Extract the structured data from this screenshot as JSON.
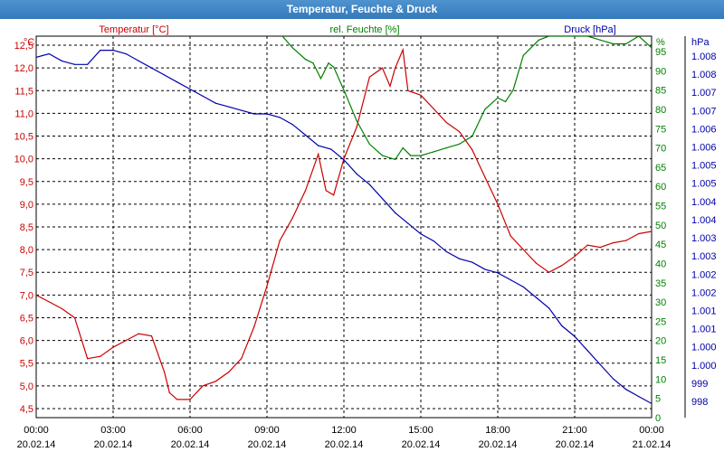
{
  "window": {
    "title": "Temperatur, Feuchte & Druck"
  },
  "chart_data": {
    "type": "line",
    "title": "Temperatur, Feuchte & Druck",
    "grid": true,
    "x_ticks": [
      {
        "time": "00:00",
        "date": "20.02.14"
      },
      {
        "time": "03:00",
        "date": "20.02.14"
      },
      {
        "time": "06:00",
        "date": "20.02.14"
      },
      {
        "time": "09:00",
        "date": "20.02.14"
      },
      {
        "time": "12:00",
        "date": "20.02.14"
      },
      {
        "time": "15:00",
        "date": "20.02.14"
      },
      {
        "time": "18:00",
        "date": "20.02.14"
      },
      {
        "time": "21:00",
        "date": "20.02.14"
      },
      {
        "time": "00:00",
        "date": "21.02.14"
      }
    ],
    "x_range_hours": [
      0,
      24
    ],
    "axes": {
      "temperature": {
        "label": "Temperatur [°C]",
        "unit": "°C",
        "color": "#cc0000",
        "range": [
          4.3,
          12.7
        ],
        "ticks": [
          "4,5",
          "5,0",
          "5,5",
          "6,0",
          "6,5",
          "7,0",
          "7,5",
          "8,0",
          "8,5",
          "9,0",
          "9,5",
          "10,0",
          "10,5",
          "11,0",
          "11,5",
          "12,0",
          "12,5"
        ]
      },
      "humidity": {
        "label": "rel. Feuchte [%]",
        "unit": "%",
        "color": "#008000",
        "range": [
          0,
          99
        ],
        "ticks": [
          "0",
          "5",
          "10",
          "15",
          "20",
          "25",
          "30",
          "35",
          "40",
          "45",
          "50",
          "55",
          "60",
          "65",
          "70",
          "75",
          "80",
          "85",
          "90",
          "95"
        ]
      },
      "pressure": {
        "label": "Druck [hPa]",
        "unit": "hPa",
        "color": "#0000aa",
        "range": [
          997.7,
          1008.5
        ],
        "ticks": [
          "998",
          "999",
          "1.000",
          "1.000",
          "1.001",
          "1.001",
          "1.002",
          "1.002",
          "1.003",
          "1.003",
          "1.004",
          "1.004",
          "1.005",
          "1.005",
          "1.006",
          "1.006",
          "1.007",
          "1.007",
          "1.008",
          "1.008"
        ]
      }
    },
    "series": [
      {
        "name": "Temperatur [°C]",
        "axis": "temperature",
        "color": "#cc0000",
        "x": [
          0,
          0.5,
          1,
          1.5,
          2,
          2.5,
          3,
          3.5,
          4,
          4.5,
          5,
          5.2,
          5.5,
          6,
          6.5,
          7,
          7.5,
          8,
          8.5,
          9,
          9.5,
          10,
          10.5,
          11,
          11.3,
          11.6,
          12,
          12.5,
          13,
          13.5,
          13.8,
          14,
          14.3,
          14.5,
          15,
          15.5,
          16,
          16.5,
          17,
          17.5,
          18,
          18.5,
          19,
          19.5,
          20,
          20.5,
          21,
          21.5,
          22,
          22.5,
          23,
          23.5,
          24
        ],
        "values": [
          7.0,
          6.85,
          6.7,
          6.5,
          5.6,
          5.65,
          5.85,
          6.0,
          6.15,
          6.1,
          5.3,
          4.85,
          4.7,
          4.7,
          5.0,
          5.1,
          5.3,
          5.6,
          6.3,
          7.2,
          8.2,
          8.7,
          9.3,
          10.1,
          9.3,
          9.2,
          10.0,
          10.7,
          11.8,
          12.0,
          11.6,
          12.0,
          12.4,
          11.5,
          11.4,
          11.1,
          10.8,
          10.6,
          10.2,
          9.6,
          9.0,
          8.3,
          8.0,
          7.7,
          7.5,
          7.65,
          7.85,
          8.1,
          8.05,
          8.15,
          8.2,
          8.35,
          8.4
        ]
      },
      {
        "name": "rel. Feuchte [%]",
        "axis": "humidity",
        "color": "#008000",
        "x": [
          9.6,
          10,
          10.5,
          10.8,
          11.1,
          11.4,
          11.6,
          12,
          12.5,
          13,
          13.5,
          14,
          14.3,
          14.6,
          15,
          15.5,
          16,
          16.5,
          17,
          17.5,
          18,
          18.3,
          18.6,
          19,
          19.3,
          19.6,
          20,
          20.5,
          21,
          21.5,
          22,
          22.5,
          23,
          23.5,
          24
        ],
        "values": [
          99,
          96,
          93,
          92,
          88,
          92,
          91,
          85,
          77,
          71,
          68,
          67,
          70,
          68,
          68,
          69,
          70,
          71,
          73,
          80,
          83,
          82,
          85,
          94,
          96,
          98,
          99,
          99,
          99,
          99,
          98,
          97,
          97,
          99,
          96
        ]
      },
      {
        "name": "Druck [hPa]",
        "axis": "pressure",
        "color": "#0000aa",
        "x": [
          0,
          0.5,
          1,
          1.5,
          2,
          2.5,
          3,
          3.5,
          4,
          4.5,
          5,
          5.5,
          6,
          6.5,
          7,
          7.5,
          8,
          8.5,
          9,
          9.5,
          10,
          10.5,
          11,
          11.5,
          12,
          12.5,
          13,
          13.5,
          14,
          14.5,
          15,
          15.5,
          16,
          16.5,
          17,
          17.5,
          18,
          18.5,
          19,
          19.5,
          20,
          20.5,
          21,
          21.5,
          22,
          22.5,
          23,
          23.5,
          24
        ],
        "values": [
          1007.9,
          1008.0,
          1007.8,
          1007.7,
          1007.7,
          1008.1,
          1008.1,
          1008.0,
          1007.8,
          1007.6,
          1007.4,
          1007.2,
          1007.0,
          1006.8,
          1006.6,
          1006.5,
          1006.4,
          1006.3,
          1006.3,
          1006.2,
          1006.0,
          1005.7,
          1005.4,
          1005.3,
          1005.0,
          1004.6,
          1004.3,
          1003.9,
          1003.5,
          1003.2,
          1002.9,
          1002.7,
          1002.4,
          1002.2,
          1002.1,
          1001.9,
          1001.8,
          1001.6,
          1001.4,
          1001.1,
          1000.8,
          1000.3,
          1000.0,
          999.6,
          999.2,
          998.8,
          998.5,
          998.3,
          998.1
        ]
      }
    ]
  }
}
